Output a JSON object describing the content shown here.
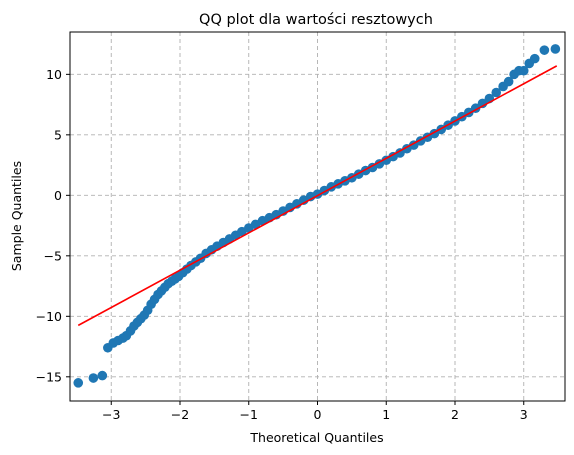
{
  "chart_data": {
    "type": "scatter",
    "title": "QQ plot dla wartości resztowych",
    "xlabel": "Theoretical Quantiles",
    "ylabel": "Sample Quantiles",
    "xlim": [
      -3.6,
      3.6
    ],
    "ylim": [
      -17,
      13.5
    ],
    "xticks": [
      -3,
      -2,
      -1,
      0,
      1,
      2,
      3
    ],
    "yticks": [
      -15,
      -10,
      -5,
      0,
      5,
      10
    ],
    "grid": true,
    "colors": {
      "points": "#1f77b4",
      "line": "#ff0000",
      "grid": "#b0b0b0"
    },
    "reference_line": {
      "x": [
        -3.48,
        3.48
      ],
      "y": [
        -10.75,
        10.7
      ]
    },
    "x": [
      -3.48,
      -3.26,
      -3.13,
      -3.05,
      -2.97,
      -2.9,
      -2.83,
      -2.78,
      -2.72,
      -2.67,
      -2.62,
      -2.57,
      -2.52,
      -2.47,
      -2.42,
      -2.37,
      -2.32,
      -2.27,
      -2.22,
      -2.17,
      -2.12,
      -2.07,
      -2.02,
      -1.96,
      -1.9,
      -1.84,
      -1.77,
      -1.7,
      -1.62,
      -1.54,
      -1.46,
      -1.37,
      -1.28,
      -1.19,
      -1.1,
      -1.0,
      -0.9,
      -0.8,
      -0.7,
      -0.6,
      -0.5,
      -0.4,
      -0.3,
      -0.2,
      -0.1,
      0.0,
      0.1,
      0.2,
      0.3,
      0.4,
      0.5,
      0.6,
      0.7,
      0.8,
      0.9,
      1.0,
      1.1,
      1.2,
      1.3,
      1.4,
      1.5,
      1.6,
      1.7,
      1.8,
      1.9,
      2.0,
      2.1,
      2.2,
      2.3,
      2.4,
      2.5,
      2.6,
      2.7,
      2.78,
      2.86,
      2.93,
      3.0,
      3.08,
      3.16,
      3.3,
      3.46
    ],
    "y": [
      -15.5,
      -15.1,
      -14.9,
      -12.6,
      -12.2,
      -12.0,
      -11.8,
      -11.6,
      -11.2,
      -10.8,
      -10.5,
      -10.2,
      -9.9,
      -9.5,
      -9.0,
      -8.6,
      -8.2,
      -7.9,
      -7.6,
      -7.3,
      -7.1,
      -6.9,
      -6.7,
      -6.4,
      -6.1,
      -5.8,
      -5.5,
      -5.2,
      -4.8,
      -4.5,
      -4.2,
      -3.9,
      -3.6,
      -3.3,
      -3.0,
      -2.7,
      -2.4,
      -2.1,
      -1.85,
      -1.6,
      -1.3,
      -1.0,
      -0.7,
      -0.4,
      -0.1,
      0.1,
      0.4,
      0.7,
      0.95,
      1.2,
      1.45,
      1.75,
      2.05,
      2.3,
      2.6,
      2.9,
      3.2,
      3.5,
      3.85,
      4.15,
      4.5,
      4.8,
      5.1,
      5.45,
      5.8,
      6.15,
      6.5,
      6.85,
      7.2,
      7.6,
      8.0,
      8.5,
      9.0,
      9.4,
      10.0,
      10.3,
      10.3,
      10.9,
      11.3,
      12.0,
      12.1
    ]
  }
}
